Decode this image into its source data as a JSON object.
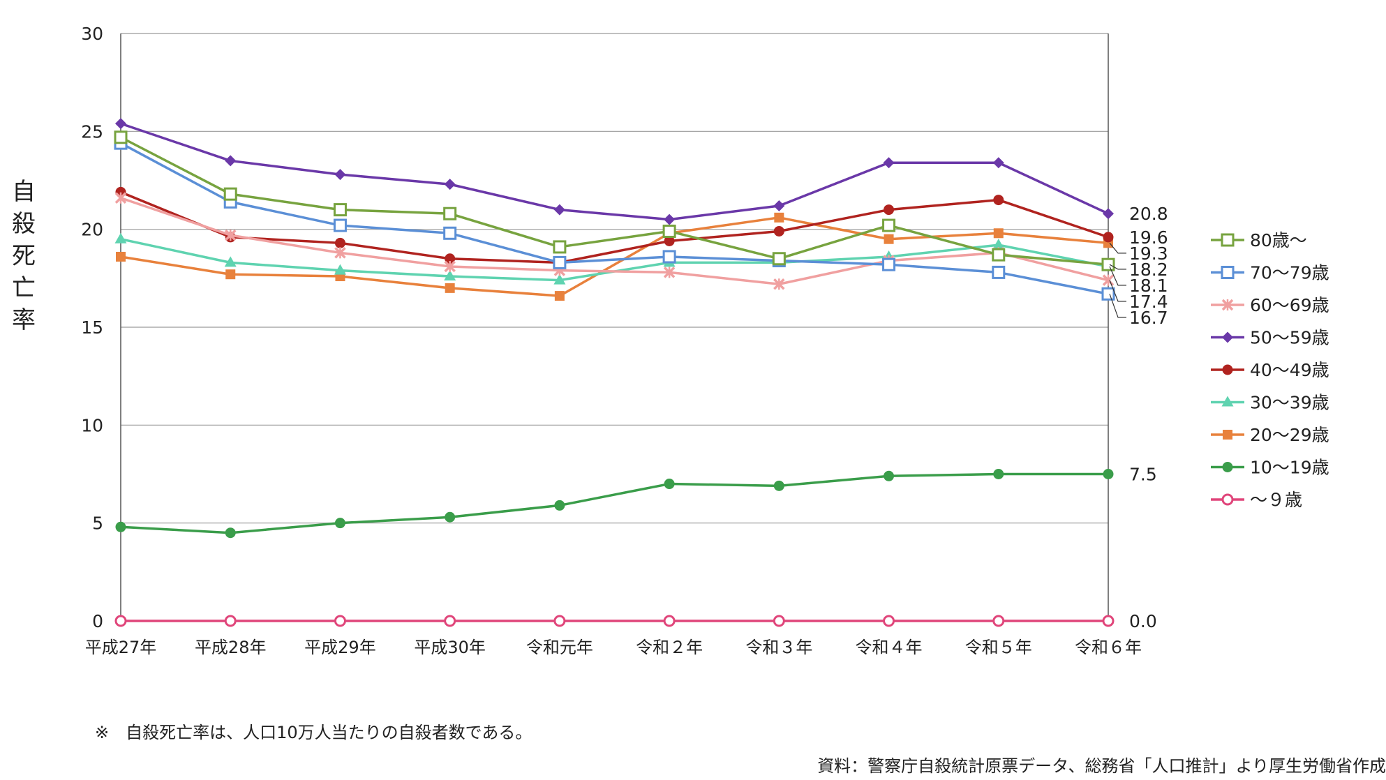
{
  "chart_data": {
    "type": "line",
    "ylabel": "自殺死亡率",
    "ylim": [
      0,
      30
    ],
    "yticks": [
      "0",
      "5",
      "10",
      "15",
      "20",
      "25",
      "30"
    ],
    "categories": [
      "平成27年",
      "平成28年",
      "平成29年",
      "平成30年",
      "令和元年",
      "令和２年",
      "令和３年",
      "令和４年",
      "令和５年",
      "令和６年"
    ],
    "grid": "horizontal",
    "legend_position": "right",
    "series": [
      {
        "name": "80歳～",
        "color": "#77a33f",
        "marker": "square-open",
        "values": [
          24.7,
          21.8,
          21.0,
          20.8,
          19.1,
          19.9,
          18.5,
          20.2,
          18.7,
          18.2
        ],
        "end_label": "18.2"
      },
      {
        "name": "70～79歳",
        "color": "#5b8fd6",
        "marker": "square-open",
        "values": [
          24.4,
          21.4,
          20.2,
          19.8,
          18.3,
          18.6,
          18.4,
          18.2,
          17.8,
          16.7
        ],
        "end_label": "16.7"
      },
      {
        "name": "60～69歳",
        "color": "#f0a0a0",
        "marker": "x",
        "values": [
          21.6,
          19.7,
          18.8,
          18.1,
          17.9,
          17.8,
          17.2,
          18.4,
          18.8,
          17.4
        ],
        "end_label": "17.4"
      },
      {
        "name": "50～59歳",
        "color": "#6a38a8",
        "marker": "diamond",
        "values": [
          25.4,
          23.5,
          22.8,
          22.3,
          21.0,
          20.5,
          21.2,
          23.4,
          23.4,
          20.8
        ],
        "end_label": "20.8"
      },
      {
        "name": "40～49歳",
        "color": "#b0231f",
        "marker": "circle",
        "values": [
          21.9,
          19.6,
          19.3,
          18.5,
          18.3,
          19.4,
          19.9,
          21.0,
          21.5,
          19.6
        ],
        "end_label": "19.6"
      },
      {
        "name": "30～39歳",
        "color": "#5fd3b0",
        "marker": "triangle",
        "values": [
          19.5,
          18.3,
          17.9,
          17.6,
          17.4,
          18.3,
          18.3,
          18.6,
          19.2,
          18.1
        ],
        "end_label": "18.1"
      },
      {
        "name": "20～29歳",
        "color": "#e8813c",
        "marker": "square",
        "values": [
          18.6,
          17.7,
          17.6,
          17.0,
          16.6,
          19.8,
          20.6,
          19.5,
          19.8,
          19.3
        ],
        "end_label": "19.3"
      },
      {
        "name": "10～19歳",
        "color": "#3a9d4a",
        "marker": "circle",
        "values": [
          4.8,
          4.5,
          5.0,
          5.3,
          5.9,
          7.0,
          6.9,
          7.4,
          7.5,
          7.5
        ],
        "end_label": "7.5"
      },
      {
        "name": "～９歳",
        "color": "#e0457a",
        "marker": "circle-open",
        "values": [
          0.0,
          0.0,
          0.0,
          0.0,
          0.0,
          0.0,
          0.0,
          0.0,
          0.0,
          0.0
        ],
        "end_label": "0.0"
      }
    ]
  },
  "notes": {
    "definition": "※　自殺死亡率は、人口10万人当たりの自殺者数である。",
    "source": "資料：警察庁自殺統計原票データ、総務省「人口推計」より厚生労働省作成"
  }
}
